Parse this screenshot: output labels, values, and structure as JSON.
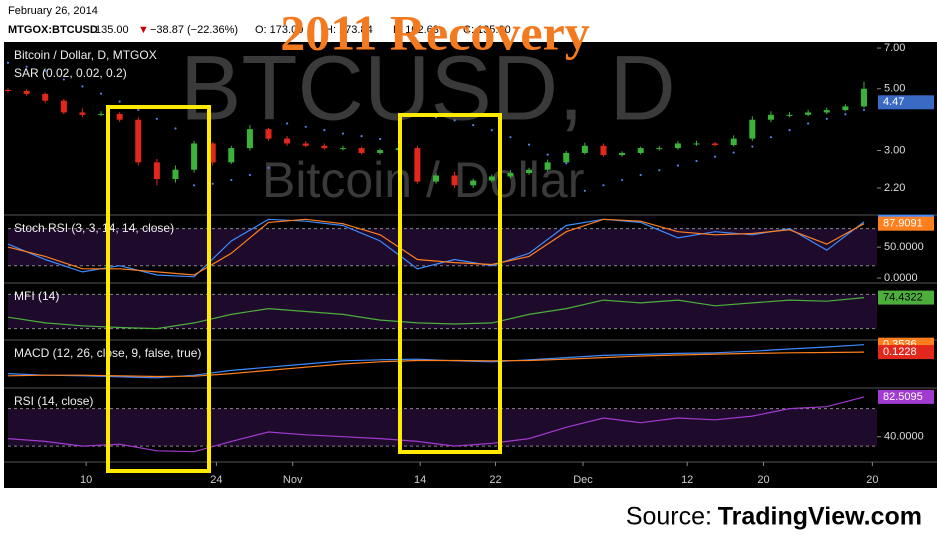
{
  "header": {
    "date": "February 26, 2014",
    "symbol": "MTGOX:BTCUSD",
    "last": "135.00",
    "change": "−38.87 (−22.36%)",
    "ohlc": [
      "O: 173.00",
      "H: 173.84",
      "L: 102.63",
      "C: 135.00"
    ]
  },
  "overlay_title": "2011 Recovery",
  "watermark": [
    "BTCUSD, D",
    "Bitcoin / Dollar"
  ],
  "source": {
    "prefix": "Source:",
    "site": "TradingView.com"
  },
  "chart_data": [
    {
      "type": "candlestick",
      "title": "Bitcoin / Dollar, D, MTGOX",
      "log_scale": true,
      "up_color": "#3bb33b",
      "down_color": "#e2281c",
      "x": [
        0,
        2,
        4,
        6,
        8,
        10,
        12,
        14,
        16,
        18,
        20,
        22,
        24,
        26,
        28,
        30,
        32,
        34,
        36,
        38,
        40,
        42,
        44,
        46,
        48,
        50,
        52,
        54,
        56,
        58,
        60,
        62,
        64,
        66,
        68,
        70,
        72,
        74,
        76,
        78,
        80,
        82,
        84,
        86,
        88,
        90,
        92
      ],
      "open": [
        4.95,
        4.91,
        4.79,
        4.53,
        4.11,
        4.03,
        4.06,
        3.87,
        2.72,
        2.37,
        2.56,
        3.18,
        2.72,
        3.06,
        3.58,
        3.31,
        3.18,
        3.12,
        3.06,
        3.06,
        2.94,
        3.01,
        3.06,
        2.32,
        2.44,
        2.25,
        2.34,
        2.42,
        2.49,
        2.56,
        2.72,
        2.94,
        3.12,
        2.89,
        2.94,
        3.06,
        3.06,
        3.18,
        3.18,
        3.14,
        3.31,
        3.87,
        4.03,
        4.03,
        4.11,
        4.19,
        4.32
      ],
      "high": [
        5.02,
        4.98,
        4.85,
        4.6,
        4.25,
        4.15,
        4.12,
        3.95,
        2.8,
        2.65,
        3.25,
        3.22,
        3.12,
        3.7,
        3.62,
        3.38,
        3.24,
        3.18,
        3.12,
        3.1,
        3.05,
        3.1,
        3.12,
        2.48,
        2.52,
        2.38,
        2.46,
        2.55,
        2.6,
        2.78,
        2.99,
        3.2,
        3.18,
        2.98,
        3.1,
        3.12,
        3.24,
        3.25,
        3.22,
        3.4,
        3.98,
        4.15,
        4.12,
        4.2,
        4.28,
        4.4,
        5.3
      ],
      "low": [
        4.85,
        4.72,
        4.45,
        4.05,
        3.95,
        3.98,
        3.8,
        2.65,
        2.25,
        2.3,
        2.5,
        2.65,
        2.68,
        3.0,
        3.25,
        3.12,
        3.08,
        3.02,
        3.0,
        2.9,
        2.9,
        2.98,
        2.28,
        2.28,
        2.2,
        2.2,
        2.3,
        2.38,
        2.45,
        2.52,
        2.68,
        2.9,
        2.85,
        2.85,
        2.9,
        3.0,
        3.02,
        3.12,
        3.1,
        3.1,
        3.25,
        3.8,
        3.95,
        3.98,
        4.05,
        4.15,
        4.28
      ],
      "close": [
        4.91,
        4.79,
        4.53,
        4.11,
        4.03,
        4.06,
        3.87,
        2.72,
        2.37,
        2.56,
        3.18,
        2.72,
        3.06,
        3.58,
        3.31,
        3.18,
        3.12,
        3.06,
        3.06,
        2.94,
        3.01,
        3.06,
        2.32,
        2.44,
        2.25,
        2.34,
        2.42,
        2.49,
        2.56,
        2.72,
        2.94,
        3.12,
        2.89,
        2.94,
        3.06,
        3.06,
        3.18,
        3.18,
        3.14,
        3.31,
        3.87,
        4.03,
        4.03,
        4.11,
        4.19,
        4.32,
        5.0
      ],
      "overlays": [
        {
          "name": "SAR (0.02, 0.02, 0.2)",
          "color": "#5a7fe6",
          "values": [
            6.2,
            6.0,
            5.8,
            5.4,
            5.1,
            4.8,
            4.5,
            4.2,
            3.9,
            3.6,
            2.25,
            2.28,
            2.35,
            2.45,
            2.6,
            3.75,
            3.65,
            3.55,
            3.45,
            3.38,
            3.3,
            3.22,
            4.05,
            3.95,
            3.85,
            3.7,
            3.55,
            3.35,
            3.15,
            2.9,
            2.7,
            2.15,
            2.25,
            2.35,
            2.45,
            2.55,
            2.65,
            2.75,
            2.85,
            2.95,
            3.1,
            3.35,
            3.55,
            3.75,
            3.9,
            4.05,
            4.2
          ]
        }
      ],
      "last_value": 4.47,
      "last_color": "#3a6bc4",
      "xlim": [
        0,
        93.4
      ],
      "ylim": [
        1.76,
        7.36
      ],
      "yticks": [
        {
          "value": 7,
          "label": "7.00"
        },
        {
          "value": 5,
          "label": "5.00"
        },
        {
          "value": 3,
          "label": "3.00"
        },
        {
          "value": 2.2,
          "label": "2.20"
        }
      ]
    },
    {
      "type": "line",
      "title": "Stoch RSI (3, 3, 14, 14, close)",
      "levels": [
        20,
        80
      ],
      "x": [
        0,
        4,
        8,
        12,
        16,
        20,
        24,
        28,
        32,
        36,
        40,
        44,
        48,
        52,
        56,
        60,
        64,
        68,
        72,
        76,
        80,
        84,
        88,
        92
      ],
      "series": [
        {
          "color": "#3d8bff",
          "values": [
            55,
            30,
            10,
            20,
            5,
            2,
            60,
            95,
            92,
            85,
            60,
            15,
            30,
            20,
            40,
            85,
            95,
            90,
            65,
            75,
            70,
            80,
            45,
            91
          ]
        },
        {
          "color": "#ff7f1e",
          "values": [
            50,
            35,
            15,
            15,
            10,
            5,
            40,
            90,
            95,
            88,
            70,
            30,
            25,
            22,
            35,
            75,
            95,
            92,
            75,
            70,
            72,
            78,
            55,
            87.9091
          ]
        }
      ],
      "xlim": [
        0,
        93.4
      ],
      "ylim": [
        -8,
        102
      ],
      "yticks": [
        {
          "value": 50,
          "label": "50.0000"
        },
        {
          "value": 0,
          "label": "0.0000"
        }
      ]
    },
    {
      "type": "line",
      "title": "MFI (14)",
      "levels": [
        20,
        80
      ],
      "x": [
        0,
        4,
        8,
        12,
        16,
        20,
        24,
        28,
        32,
        36,
        40,
        44,
        48,
        52,
        56,
        60,
        64,
        68,
        72,
        76,
        80,
        84,
        88,
        92
      ],
      "series": [
        {
          "color": "#4caf3c",
          "values": [
            40,
            30,
            25,
            22,
            20,
            30,
            45,
            55,
            50,
            45,
            35,
            30,
            28,
            30,
            45,
            55,
            70,
            65,
            70,
            60,
            65,
            70,
            68,
            74.4322
          ]
        }
      ],
      "xlim": [
        0,
        93.4
      ],
      "ylim": [
        0,
        100
      ]
    },
    {
      "type": "line",
      "title": "MACD (12, 26, close, 9, false, true)",
      "x": [
        0,
        4,
        8,
        12,
        16,
        20,
        24,
        28,
        32,
        36,
        40,
        44,
        48,
        52,
        56,
        60,
        64,
        68,
        72,
        76,
        80,
        84,
        88,
        92
      ],
      "series": [
        {
          "color": "#3d8bff",
          "label_color": "#ff7f1e",
          "values": [
            -0.55,
            -0.6,
            -0.62,
            -0.65,
            -0.68,
            -0.6,
            -0.45,
            -0.35,
            -0.25,
            -0.15,
            -0.12,
            -0.1,
            -0.15,
            -0.18,
            -0.12,
            -0.05,
            0.02,
            0.05,
            0.08,
            0.1,
            0.15,
            0.22,
            0.28,
            0.3536
          ]
        },
        {
          "color": "#ff7f1e",
          "label_color": "#e2281c",
          "values": [
            -0.62,
            -0.6,
            -0.6,
            -0.62,
            -0.64,
            -0.63,
            -0.55,
            -0.45,
            -0.35,
            -0.25,
            -0.18,
            -0.14,
            -0.14,
            -0.15,
            -0.14,
            -0.1,
            -0.05,
            0.0,
            0.03,
            0.06,
            0.08,
            0.1,
            0.11,
            0.1228
          ]
        }
      ],
      "xlim": [
        0,
        93.4
      ],
      "ylim": [
        -1,
        0.5
      ]
    },
    {
      "type": "line",
      "title": "RSI (14, close)",
      "levels": [
        30,
        70
      ],
      "x": [
        0,
        4,
        8,
        12,
        16,
        20,
        24,
        28,
        32,
        36,
        40,
        44,
        48,
        52,
        56,
        60,
        64,
        68,
        72,
        76,
        80,
        84,
        88,
        92
      ],
      "series": [
        {
          "color": "#a23ad0",
          "values": [
            38,
            35,
            30,
            32,
            25,
            24,
            35,
            45,
            42,
            40,
            38,
            35,
            30,
            33,
            38,
            50,
            60,
            55,
            60,
            58,
            62,
            70,
            72,
            82.5095
          ]
        }
      ],
      "xlim": [
        0,
        93.4
      ],
      "ylim": [
        13,
        92
      ],
      "yticks": [
        {
          "value": 40,
          "label": "40.0000"
        }
      ],
      "xticks": [
        {
          "value": 8.4,
          "label": "10"
        },
        {
          "value": 22.4,
          "label": "24"
        },
        {
          "value": 30.6,
          "label": "Nov"
        },
        {
          "value": 44.3,
          "label": "14"
        },
        {
          "value": 52.4,
          "label": "22"
        },
        {
          "value": 61.8,
          "label": "Dec"
        },
        {
          "value": 73,
          "label": "12"
        },
        {
          "value": 81.2,
          "label": "20"
        },
        {
          "value": 92.9,
          "label": "20"
        }
      ]
    }
  ]
}
